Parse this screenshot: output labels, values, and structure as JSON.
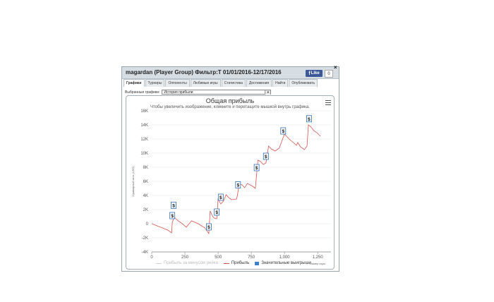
{
  "window": {
    "title": "magardan (Player Group) Фильтр:T 01/01/2016-12/17/2016",
    "fb_like_label": "Like",
    "fb_count": "0",
    "close_label": "×"
  },
  "tabs": [
    {
      "label": "Графики",
      "active": true
    },
    {
      "label": "Турниры"
    },
    {
      "label": "Оппоненты"
    },
    {
      "label": "Любимые игры"
    },
    {
      "label": "Статистика"
    },
    {
      "label": "Достижения"
    },
    {
      "label": "Найти"
    },
    {
      "label": "Опубликовать"
    }
  ],
  "graph_select": {
    "label": "Выбранные графики:",
    "value": "История прибыли"
  },
  "chart": {
    "title": "Общая прибыль",
    "subtitle": "Чтобы увеличить изображение, кликните и перетащите мышкой внутрь графика.",
    "xunit": "Номер игры",
    "legend": [
      {
        "label": "Прибыль за минусом рейка",
        "color": "#cfcfcf",
        "kind": "line"
      },
      {
        "label": "Прибыль",
        "color": "#d9534f",
        "kind": "line"
      },
      {
        "label": "Значительные выигрыши",
        "color": "#3b7fd1",
        "kind": "box"
      }
    ],
    "colors": {
      "profit": "#d9534f",
      "marker": "#2d6cb5",
      "grid": "#e6e6e6"
    }
  },
  "chart_data": {
    "type": "line",
    "title": "Общая прибыль",
    "xlabel": "Номер игры",
    "ylabel": "Суммарный итог (USD)",
    "xlim": [
      0,
      1350
    ],
    "ylim": [
      -4000,
      16000
    ],
    "x_ticks": [
      "0",
      "250",
      "500",
      "750",
      "1,000",
      "1,250"
    ],
    "y_ticks": [
      "-4K",
      "-2K",
      "0",
      "2K",
      "4K",
      "6K",
      "8K",
      "10K",
      "12K",
      "14K",
      "16K"
    ],
    "series": [
      {
        "name": "Прибыль",
        "x": [
          0,
          40,
          80,
          120,
          150,
          155,
          170,
          200,
          230,
          260,
          300,
          350,
          400,
          430,
          440,
          460,
          470,
          490,
          500,
          520,
          540,
          560,
          580,
          600,
          640,
          660,
          680,
          700,
          720,
          750,
          760,
          780,
          800,
          820,
          840,
          860,
          880,
          900,
          920,
          930,
          960,
          1000,
          1040,
          1060,
          1090,
          1100,
          1120,
          1150,
          1170,
          1180,
          1200,
          1220,
          1250,
          1270
        ],
        "values": [
          0,
          -300,
          -600,
          -900,
          -1300,
          200,
          900,
          400,
          0,
          -500,
          400,
          0,
          -600,
          -1400,
          1800,
          1000,
          800,
          700,
          3500,
          2800,
          3200,
          4100,
          3700,
          3400,
          3500,
          5600,
          5500,
          5100,
          5700,
          5400,
          5300,
          5000,
          9000,
          8800,
          8400,
          8600,
          11000,
          10600,
          10400,
          10300,
          10700,
          12700,
          11900,
          11600,
          11100,
          11500,
          10900,
          10500,
          11000,
          14000,
          13700,
          13200,
          12800,
          12400
        ]
      }
    ],
    "big_wins_x": [
      155,
      165,
      430,
      490,
      520,
      650,
      790,
      860,
      990,
      1185
    ]
  }
}
